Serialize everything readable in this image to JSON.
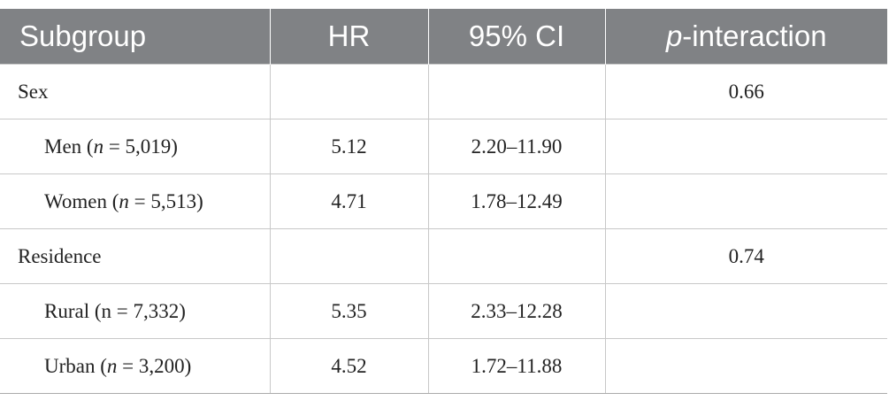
{
  "table": {
    "header": [
      [
        {
          "text": "Subgroup"
        }
      ],
      [
        {
          "text": "HR"
        }
      ],
      [
        {
          "text": "95% CI"
        }
      ],
      [
        {
          "text": "p",
          "italic": true
        },
        {
          "text": "-interaction"
        }
      ]
    ],
    "groups": [
      {
        "name": "Sex",
        "p_interaction": "0.66",
        "rows": [
          {
            "subgroup": [
              {
                "text": "Men ("
              },
              {
                "text": "n",
                "italic": true
              },
              {
                "text": " = 5,019)"
              }
            ],
            "hr": "5.12",
            "ci": "2.20–11.90"
          },
          {
            "subgroup": [
              {
                "text": "Women ("
              },
              {
                "text": "n",
                "italic": true
              },
              {
                "text": " = 5,513)"
              }
            ],
            "hr": "4.71",
            "ci": "1.78–12.49"
          }
        ]
      },
      {
        "name": "Residence",
        "p_interaction": "0.74",
        "rows": [
          {
            "subgroup": [
              {
                "text": "Rural (n = 7,332)"
              }
            ],
            "hr": "5.35",
            "ci": "2.33–12.28"
          },
          {
            "subgroup": [
              {
                "text": "Urban ("
              },
              {
                "text": "n",
                "italic": true
              },
              {
                "text": " = 3,200)"
              }
            ],
            "hr": "4.52",
            "ci": "1.72–11.88"
          }
        ]
      }
    ]
  }
}
